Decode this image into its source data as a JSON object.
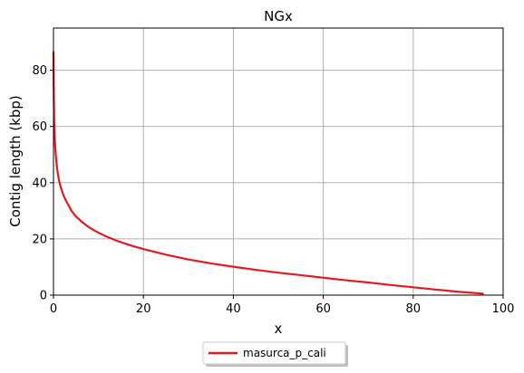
{
  "chart_data": {
    "type": "line",
    "title": "NGx",
    "xlabel": "x",
    "ylabel": "Contig length (kbp)",
    "xlim": [
      0,
      100
    ],
    "ylim": [
      0,
      95
    ],
    "xticks": [
      0,
      20,
      40,
      60,
      80,
      100
    ],
    "yticks": [
      0,
      20,
      40,
      60,
      80
    ],
    "grid": true,
    "legend_position": "bottom-center",
    "series": [
      {
        "name": "masurca_p_cali",
        "color": "#e41a1c",
        "x": [
          0,
          0.05,
          0.15,
          0.3,
          0.5,
          0.8,
          1.2,
          1.6,
          2,
          2.5,
          3,
          4,
          5,
          6,
          7,
          8,
          10,
          12,
          14,
          16,
          18,
          20,
          25,
          30,
          35,
          40,
          45,
          50,
          55,
          60,
          65,
          70,
          75,
          80,
          85,
          90,
          95,
          95.5
        ],
        "y": [
          86.5,
          75,
          62,
          55,
          50,
          45,
          41,
          38.5,
          36.5,
          34.5,
          33,
          30,
          28,
          26.5,
          25.2,
          24,
          22.2,
          20.7,
          19.4,
          18.3,
          17.3,
          16.4,
          14.4,
          12.7,
          11.3,
          10.1,
          9,
          8,
          7.1,
          6.2,
          5.3,
          4.5,
          3.6,
          2.8,
          2,
          1.2,
          0.6,
          0.5
        ]
      }
    ]
  }
}
